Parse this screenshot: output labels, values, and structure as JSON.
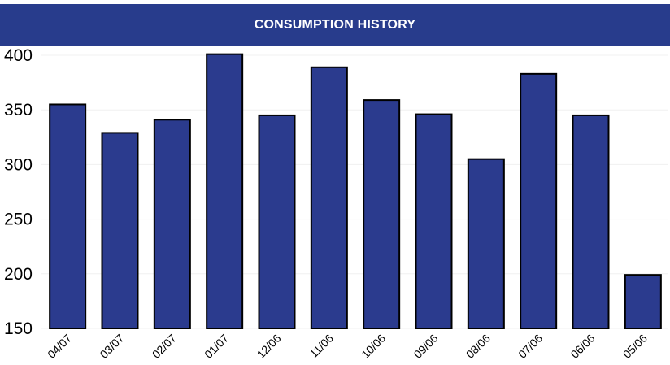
{
  "header": {
    "title": "CONSUMPTION HISTORY"
  },
  "colors": {
    "header_bg": "#283C8C",
    "bar_fill": "#2B3B8E",
    "bar_stroke": "#000000",
    "grid": "#f0f0f0",
    "text": "#000000"
  },
  "chart_data": {
    "type": "bar",
    "title": "CONSUMPTION HISTORY",
    "xlabel": "",
    "ylabel": "",
    "categories": [
      "04/07",
      "03/07",
      "02/07",
      "01/07",
      "12/06",
      "11/06",
      "10/06",
      "09/06",
      "08/06",
      "07/06",
      "06/06",
      "05/06"
    ],
    "values": [
      355,
      329,
      341,
      401,
      345,
      389,
      359,
      346,
      305,
      383,
      345,
      199
    ],
    "ylim": [
      150,
      400
    ],
    "yticks": [
      150,
      200,
      250,
      300,
      350,
      400
    ],
    "grid": true,
    "legend": "none"
  }
}
